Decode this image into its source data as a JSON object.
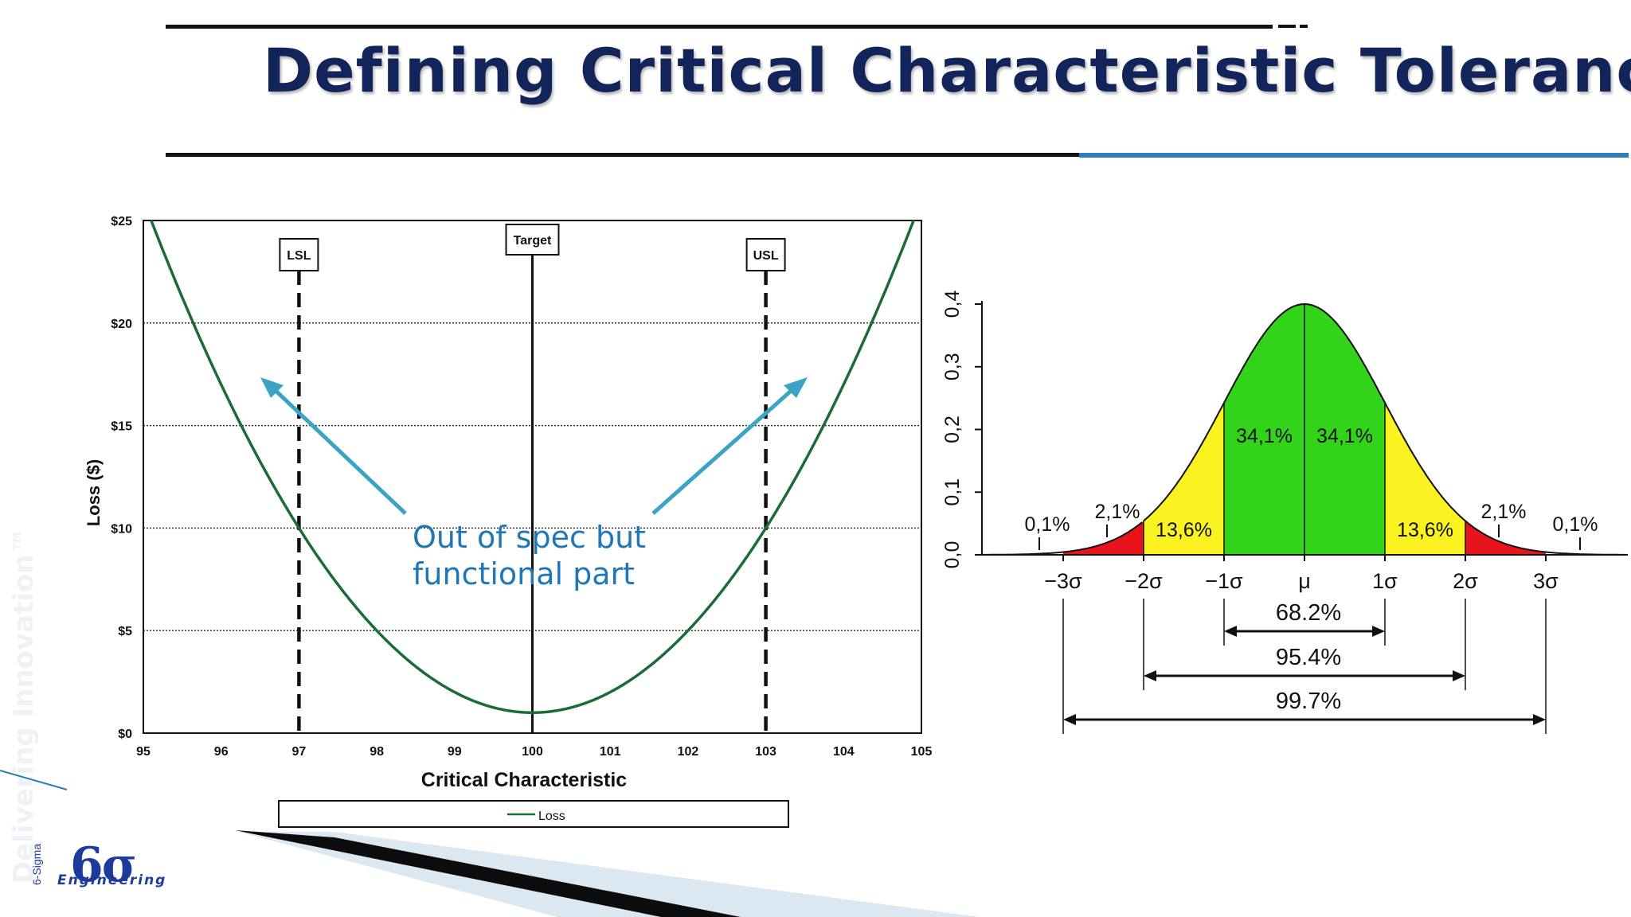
{
  "slide": {
    "title": "Defining Critical Characteristic Tolerance",
    "callout_line1": "Out of spec but",
    "callout_line2": "functional part",
    "watermark": "Delivering Innovation™",
    "logo_text": "6σ",
    "logo_sub": "Engineering",
    "logo_side": "6-Sigma",
    "colors": {
      "title": "#13245a",
      "accent": "#2d7fb8",
      "callout": "#1f77b8",
      "loss_curve": "#1a6b36"
    }
  },
  "chart_data": [
    {
      "type": "line",
      "xlabel": "Critical Characteristic",
      "ylabel": "Loss ($)",
      "xlim": [
        95,
        105
      ],
      "ylim": [
        0,
        25
      ],
      "x_ticks": [
        95,
        96,
        97,
        98,
        99,
        100,
        101,
        102,
        103,
        104,
        105
      ],
      "y_ticks": [
        0,
        5,
        10,
        15,
        20,
        25
      ],
      "y_tick_labels": [
        "$0",
        "$5",
        "$10",
        "$15",
        "$20",
        "$25"
      ],
      "grid": "horizontal dotted",
      "series": [
        {
          "name": "Loss",
          "formula": "loss = 1 + 1*(x-100)^2",
          "x": [
            95,
            96,
            97,
            98,
            99,
            100,
            101,
            102,
            103,
            104,
            105
          ],
          "y": [
            26,
            17,
            10,
            5,
            2,
            1,
            2,
            5,
            10,
            17,
            26
          ]
        }
      ],
      "markers": [
        {
          "label": "LSL",
          "x": 97,
          "style": "dashed"
        },
        {
          "label": "Target",
          "x": 100,
          "style": "solid"
        },
        {
          "label": "USL",
          "x": 103,
          "style": "dashed"
        }
      ],
      "legend": {
        "label": "Loss",
        "position": "bottom"
      }
    },
    {
      "type": "area",
      "y_ticks": [
        0.0,
        0.1,
        0.2,
        0.3,
        0.4
      ],
      "y_tick_labels": [
        "0,0",
        "0,1",
        "0,2",
        "0,3",
        "0,4"
      ],
      "x_tick_labels": [
        "−3σ",
        "−2σ",
        "−1σ",
        "μ",
        "1σ",
        "2σ",
        "3σ"
      ],
      "regions": [
        {
          "from": -3,
          "to": -2,
          "percent": "2,1%",
          "color": "#e8141c"
        },
        {
          "from": -2,
          "to": -1,
          "percent": "13,6%",
          "color": "#fbf321"
        },
        {
          "from": -1,
          "to": 0,
          "percent": "34,1%",
          "color": "#33d31c"
        },
        {
          "from": 0,
          "to": 1,
          "percent": "34,1%",
          "color": "#33d31c"
        },
        {
          "from": 1,
          "to": 2,
          "percent": "13,6%",
          "color": "#fbf321"
        },
        {
          "from": 2,
          "to": 3,
          "percent": "2,1%",
          "color": "#e8141c"
        }
      ],
      "tail_labels": [
        "0,1%",
        "0,1%"
      ],
      "spans": [
        {
          "from": -1,
          "to": 1,
          "label": "68.2%"
        },
        {
          "from": -2,
          "to": 2,
          "label": "95.4%"
        },
        {
          "from": -3,
          "to": 3,
          "label": "99.7%"
        }
      ]
    }
  ]
}
